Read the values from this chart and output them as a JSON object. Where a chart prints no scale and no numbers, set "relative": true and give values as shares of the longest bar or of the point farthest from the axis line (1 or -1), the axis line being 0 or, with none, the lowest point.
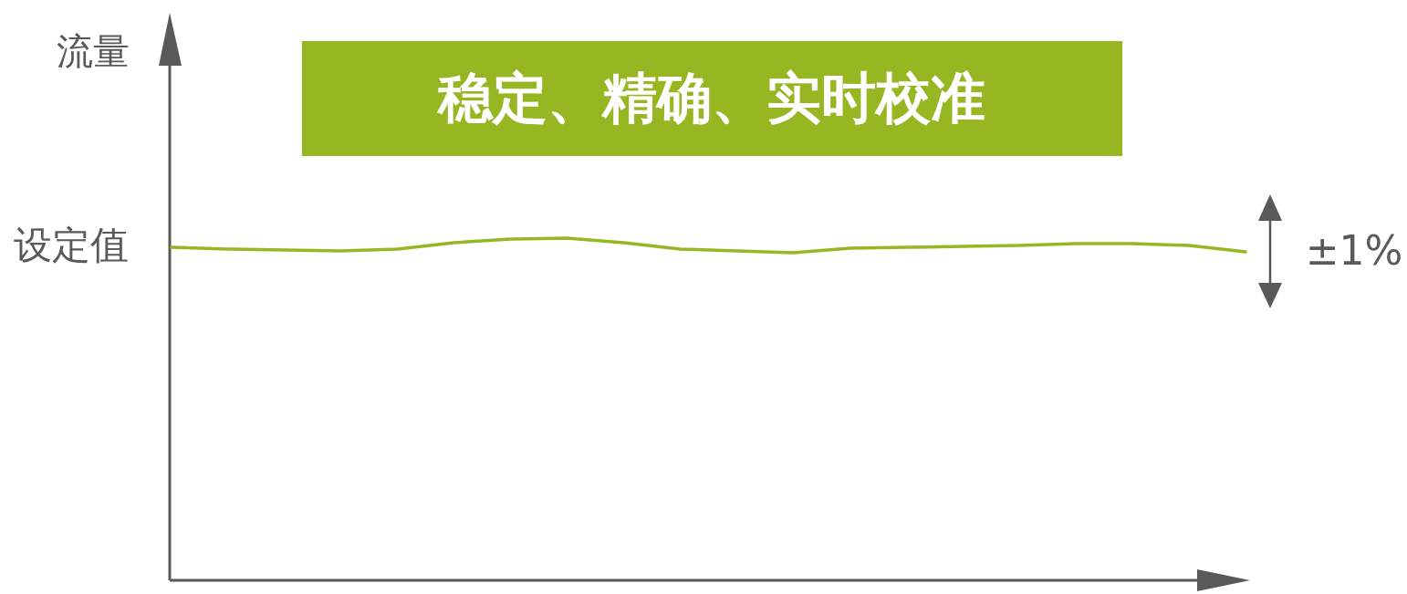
{
  "chart_data": {
    "type": "line",
    "title": "稳定、精确、实时校准",
    "ylabel": "流量",
    "relative": true,
    "categories": [
      null,
      null,
      null,
      null,
      null,
      null,
      null,
      null,
      null,
      null,
      null,
      null,
      null,
      null,
      null,
      null,
      null,
      null,
      null,
      null
    ],
    "series": [
      {
        "color": "#97b722",
        "values": [
          0.973,
          0.968,
          0.965,
          0.963,
          0.968,
          0.987,
          0.997,
          1,
          0.987,
          0.968,
          0.963,
          0.957,
          0.971,
          0.973,
          0.976,
          0.979,
          0.984,
          0.984,
          0.979,
          0.96
        ]
      }
    ],
    "annotations": [
      "设定值",
      "±1%"
    ]
  }
}
